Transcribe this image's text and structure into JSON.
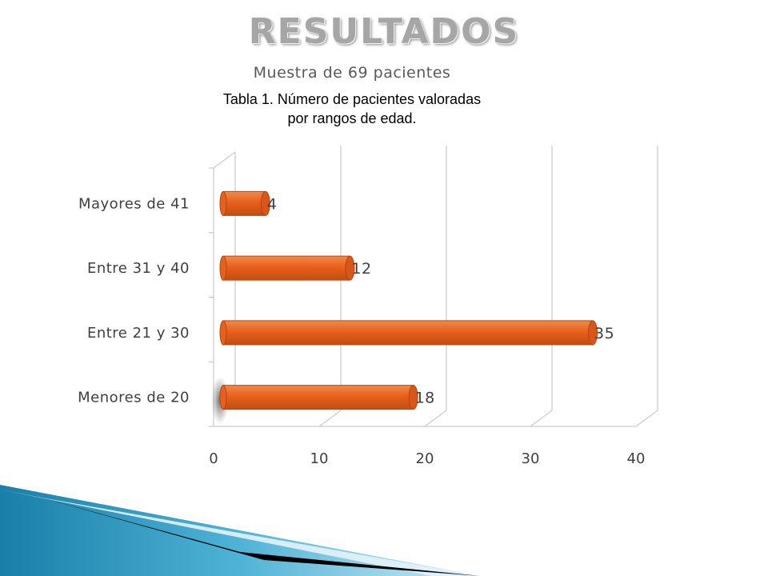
{
  "slide": {
    "title": "RESULTADOS",
    "subtitle": "Muestra de 69 pacientes",
    "caption": "Tabla 1. Número de pacientes valoradas\npor rangos de edad."
  },
  "colors": {
    "bar": "#e8601c",
    "bar_dark": "#b8440e",
    "grid": "#bfbfbf",
    "decor_blue": "#1f8fb8",
    "decor_light": "#d6eef7"
  },
  "chart_data": {
    "type": "bar",
    "orientation": "horizontal",
    "title": "",
    "xlabel": "",
    "ylabel": "",
    "categories": [
      "Menores de 20",
      "Entre 21 y 30",
      "Entre 31 y 40",
      "Mayores de 41"
    ],
    "values": [
      18,
      35,
      12,
      4
    ],
    "xlim": [
      0,
      40
    ],
    "xticks": [
      0,
      10,
      20,
      30,
      40
    ],
    "grid": true,
    "legend": "none",
    "data_labels": true,
    "three_d": true
  }
}
